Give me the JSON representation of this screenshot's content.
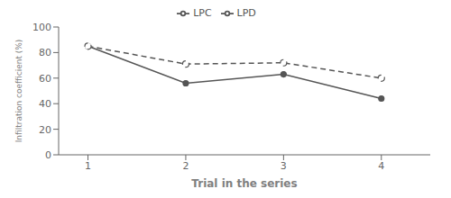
{
  "chart_data": {
    "type": "line",
    "x": [
      1,
      2,
      3,
      4
    ],
    "series": [
      {
        "name": "LPC",
        "color": "#555555",
        "values": [
          85,
          56,
          63,
          44
        ],
        "marker": "circle",
        "line_style": "solid"
      },
      {
        "name": "LPD",
        "color": "#555555",
        "values": [
          85,
          71,
          72,
          60
        ],
        "marker": "open_circle",
        "line_style": "dashed"
      }
    ],
    "xlabel": "Trial in the series",
    "ylabel": "Infiltration coefficient (%)",
    "xlim": [
      0.7,
      4.5
    ],
    "ylim": [
      0,
      100
    ],
    "xticks": [
      1,
      2,
      3,
      4
    ],
    "yticks": [
      0,
      20,
      40,
      60,
      80,
      100
    ],
    "grid": false,
    "legend": "top"
  }
}
